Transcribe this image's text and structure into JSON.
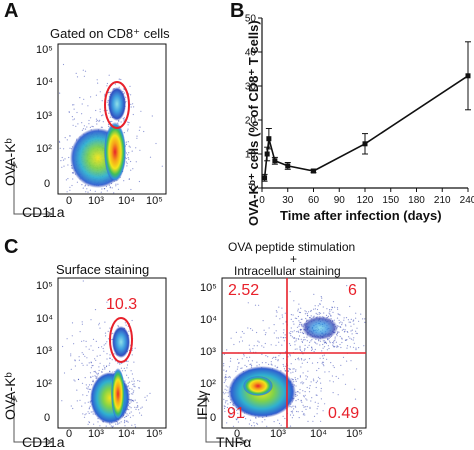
{
  "panels": {
    "a": {
      "letter": "A",
      "gate_title": "Gated on CD8⁺ cells",
      "y_axis": "OVA-Kᵇ",
      "x_axis": "CD11a",
      "y_ticks": [
        "10⁵",
        "10⁴",
        "10³",
        "10²",
        "0"
      ],
      "x_ticks": [
        "0",
        "10³",
        "10⁴",
        "10⁵"
      ]
    },
    "b": {
      "letter": "B",
      "title": "Time after infection (days)",
      "ylabel": "OVA-Kᵇ⁺ cells (% of CD8⁺ T cells)"
    },
    "c": {
      "letter": "C",
      "left_title": "Surface staining",
      "left_gate_value": "10.3",
      "left_y_axis": "OVA-Kᵇ",
      "left_x_axis": "CD11a",
      "right_title_line1": "OVA peptide stimulation",
      "right_title_plus": "+",
      "right_title_line2": "Intracellular staining",
      "right_y_axis": "IFNγ",
      "right_x_axis": "TNFα",
      "quadrants": {
        "ul": "2.52",
        "ur": "6",
        "ll": "91",
        "lr": "0.49"
      },
      "y_ticks": [
        "10⁵",
        "10⁴",
        "10³",
        "10²",
        "0"
      ],
      "x_ticks": [
        "0",
        "10³",
        "10⁴",
        "10⁵"
      ]
    }
  },
  "colors": {
    "gate": "#e8212b",
    "line": "#111111"
  },
  "chart_data": {
    "type": "line",
    "title": "",
    "xlabel": "Time after infection (days)",
    "ylabel": "OVA-Kᵇ⁺ cells (% of CD8⁺ T cells)",
    "xlim": [
      0,
      240
    ],
    "ylim": [
      0,
      50
    ],
    "x_ticks": [
      0,
      30,
      60,
      90,
      120,
      150,
      180,
      210,
      240
    ],
    "y_ticks": [
      0,
      10,
      20,
      30,
      40,
      50
    ],
    "series": [
      {
        "x": [
          3,
          6,
          8,
          15,
          30,
          60,
          120,
          240
        ],
        "y": [
          3,
          10,
          14.5,
          8,
          6.5,
          5,
          13,
          33
        ],
        "err": [
          1,
          2,
          3,
          1,
          1,
          0.5,
          3,
          10
        ]
      }
    ]
  }
}
